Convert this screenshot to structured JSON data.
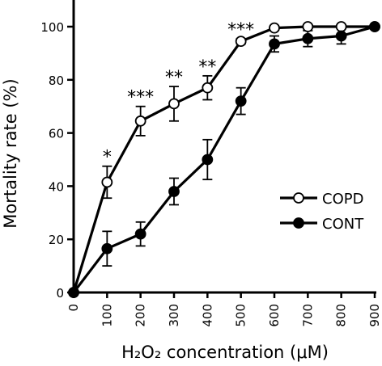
{
  "chart_data": {
    "type": "line",
    "title": "",
    "xlabel": "H₂O₂ concentration (μM)",
    "ylabel": "Mortality rate (%)",
    "xlim": [
      0,
      900
    ],
    "ylim": [
      0,
      100
    ],
    "x": [
      0,
      100,
      200,
      300,
      400,
      500,
      600,
      700,
      800,
      900
    ],
    "xticks": [
      "0",
      "100",
      "200",
      "300",
      "400",
      "500",
      "600",
      "700",
      "800",
      "900"
    ],
    "yticks": [
      "0",
      "20",
      "40",
      "60",
      "80",
      "100"
    ],
    "grid": false,
    "legend_position": "bottom-right",
    "series": [
      {
        "name": "COPD",
        "marker": "open-circle",
        "color": "#000000",
        "values": [
          0,
          41.5,
          64.5,
          71,
          77,
          94.5,
          99.5,
          100,
          100,
          100
        ],
        "errors": [
          0,
          6,
          5.5,
          6.5,
          4.5,
          1,
          0,
          0,
          0,
          0
        ]
      },
      {
        "name": "CONT",
        "marker": "filled-circle",
        "color": "#000000",
        "values": [
          0,
          16.5,
          22,
          38,
          50,
          72,
          93.5,
          95.5,
          96.5,
          100
        ],
        "errors": [
          0,
          6.5,
          4.5,
          5,
          7.5,
          5,
          3,
          3,
          3,
          0
        ]
      }
    ],
    "annotations": [
      {
        "x": 100,
        "text": "*"
      },
      {
        "x": 200,
        "text": "***"
      },
      {
        "x": 300,
        "text": "**"
      },
      {
        "x": 400,
        "text": "**"
      },
      {
        "x": 500,
        "text": "***"
      }
    ]
  }
}
